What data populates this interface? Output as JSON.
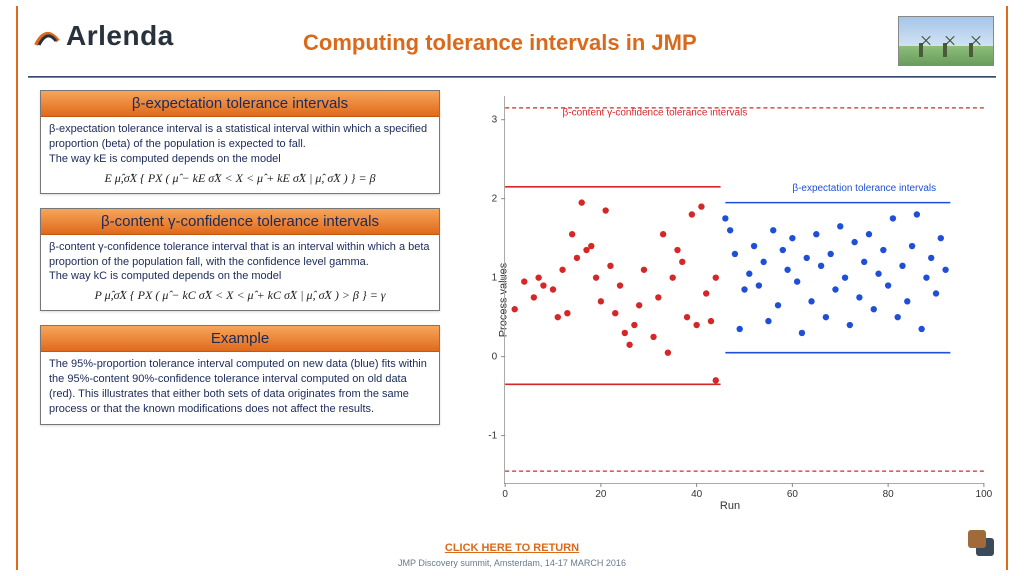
{
  "header": {
    "logo": "Arlenda",
    "title": "Computing tolerance intervals in JMP"
  },
  "boxes": {
    "b1": {
      "title": "β-expectation tolerance intervals",
      "body": "β-expectation tolerance interval is a statistical interval within which a specified proportion (beta) of the population is expected to fall.\nThe way kE is computed depends on the model",
      "formula": "E μ̂,σ̂X { PX ( μ̂ − kE σ̂X < X < μ̂ + kE σ̂X | μ̂, σ̂X ) } = β"
    },
    "b2": {
      "title": "β-content γ-confidence tolerance intervals",
      "body": "β-content γ-confidence tolerance interval that is an interval within which a beta proportion of the population fall, with the confidence level gamma.\nThe way kC is computed depends on the model",
      "formula": "P μ̂,σ̂X { PX ( μ̂ − kC σ̂X < X < μ̂ + kC σ̂X | μ̂, σ̂X ) > β } = γ"
    },
    "b3": {
      "title": "Example",
      "body": "The 95%-proportion tolerance interval computed on new data (blue) fits within the 95%-content 90%-confidence tolerance interval computed on old data (red). This illustrates that either both sets of data originates from the same process or that the known modifications does not affect the results."
    }
  },
  "chart": {
    "type": "scatter",
    "xlabel": "Run",
    "ylabel": "Process values",
    "xlim": [
      0,
      100
    ],
    "ylim": [
      -1.6,
      3.3
    ],
    "xticks": [
      0,
      20,
      40,
      60,
      80,
      100
    ],
    "yticks": [
      -1,
      0,
      1,
      2,
      3
    ],
    "red_color": "#d62728",
    "blue_color": "#1f4fd6",
    "marker_radius": 3.2,
    "legend_red": "β-content γ-confidence tolerance intervals",
    "legend_blue": "β-expectation tolerance intervals",
    "red_dash_y": [
      3.15,
      -1.45
    ],
    "red_solid": {
      "x": [
        0,
        45
      ],
      "y": [
        2.15,
        -0.35
      ]
    },
    "blue_solid": {
      "x": [
        46,
        93
      ],
      "y": [
        1.95,
        0.05
      ]
    },
    "red_points": [
      [
        2,
        0.6
      ],
      [
        4,
        0.95
      ],
      [
        6,
        0.75
      ],
      [
        7,
        1.0
      ],
      [
        8,
        0.9
      ],
      [
        10,
        0.85
      ],
      [
        11,
        0.5
      ],
      [
        12,
        1.1
      ],
      [
        13,
        0.55
      ],
      [
        14,
        1.55
      ],
      [
        15,
        1.25
      ],
      [
        16,
        1.95
      ],
      [
        17,
        1.35
      ],
      [
        18,
        1.4
      ],
      [
        19,
        1.0
      ],
      [
        20,
        0.7
      ],
      [
        21,
        1.85
      ],
      [
        22,
        1.15
      ],
      [
        23,
        0.55
      ],
      [
        24,
        0.9
      ],
      [
        25,
        0.3
      ],
      [
        26,
        0.15
      ],
      [
        27,
        0.4
      ],
      [
        28,
        0.65
      ],
      [
        29,
        1.1
      ],
      [
        31,
        0.25
      ],
      [
        32,
        0.75
      ],
      [
        33,
        1.55
      ],
      [
        34,
        0.05
      ],
      [
        35,
        1.0
      ],
      [
        36,
        1.35
      ],
      [
        37,
        1.2
      ],
      [
        38,
        0.5
      ],
      [
        39,
        1.8
      ],
      [
        40,
        0.4
      ],
      [
        41,
        1.9
      ],
      [
        42,
        0.8
      ],
      [
        43,
        0.45
      ],
      [
        44,
        1.0
      ],
      [
        44,
        -0.3
      ]
    ],
    "blue_points": [
      [
        46,
        1.75
      ],
      [
        47,
        1.6
      ],
      [
        48,
        1.3
      ],
      [
        49,
        0.35
      ],
      [
        50,
        0.85
      ],
      [
        51,
        1.05
      ],
      [
        52,
        1.4
      ],
      [
        53,
        0.9
      ],
      [
        54,
        1.2
      ],
      [
        55,
        0.45
      ],
      [
        56,
        1.6
      ],
      [
        57,
        0.65
      ],
      [
        58,
        1.35
      ],
      [
        59,
        1.1
      ],
      [
        60,
        1.5
      ],
      [
        61,
        0.95
      ],
      [
        62,
        0.3
      ],
      [
        63,
        1.25
      ],
      [
        64,
        0.7
      ],
      [
        65,
        1.55
      ],
      [
        66,
        1.15
      ],
      [
        67,
        0.5
      ],
      [
        68,
        1.3
      ],
      [
        69,
        0.85
      ],
      [
        70,
        1.65
      ],
      [
        71,
        1.0
      ],
      [
        72,
        0.4
      ],
      [
        73,
        1.45
      ],
      [
        74,
        0.75
      ],
      [
        75,
        1.2
      ],
      [
        76,
        1.55
      ],
      [
        77,
        0.6
      ],
      [
        78,
        1.05
      ],
      [
        79,
        1.35
      ],
      [
        80,
        0.9
      ],
      [
        81,
        1.75
      ],
      [
        82,
        0.5
      ],
      [
        83,
        1.15
      ],
      [
        84,
        0.7
      ],
      [
        85,
        1.4
      ],
      [
        86,
        1.8
      ],
      [
        87,
        0.35
      ],
      [
        88,
        1.0
      ],
      [
        89,
        1.25
      ],
      [
        90,
        0.8
      ],
      [
        91,
        1.5
      ],
      [
        92,
        1.1
      ]
    ]
  },
  "footer": {
    "return": "CLICK HERE TO RETURN",
    "conf": "JMP Discovery summit, Amsterdam, 14-17 MARCH 2016"
  },
  "style": {
    "accent": "#e06a1c",
    "header_grad_top": "#f6a55a",
    "header_grad_bot": "#e06a1c",
    "text_navy": "#1b2a5a",
    "corner1": "#8a5a3a",
    "corner2": "#3a4a5a"
  }
}
